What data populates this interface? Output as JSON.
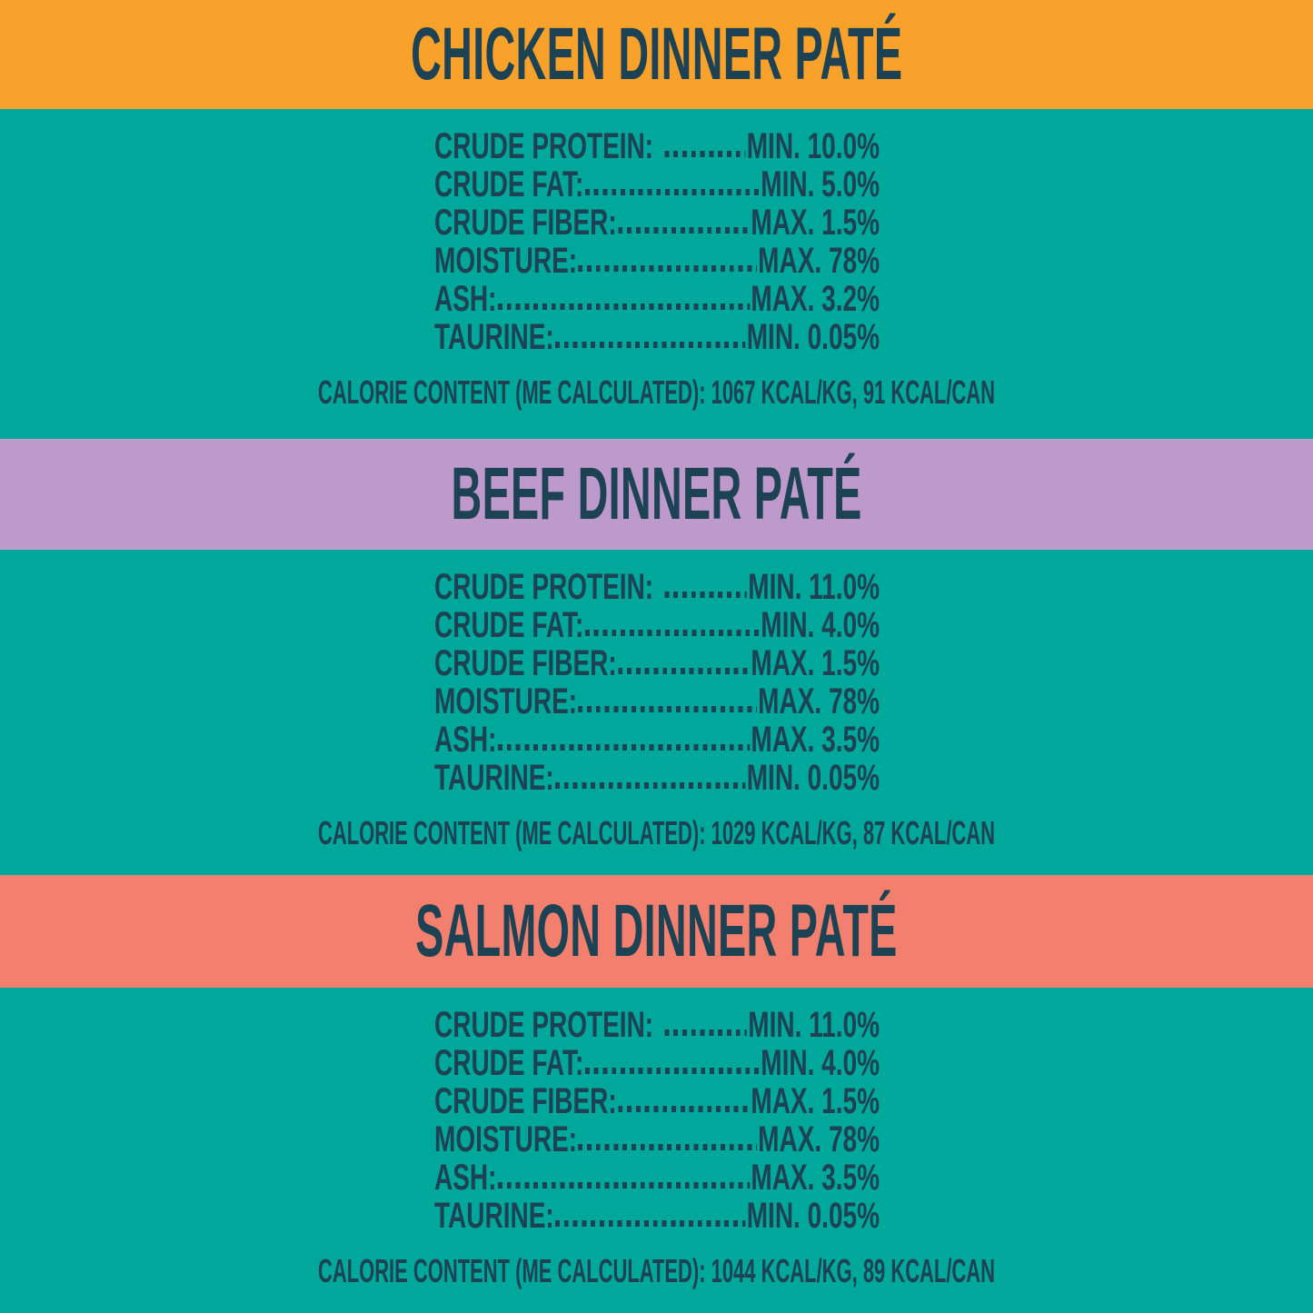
{
  "panel": {
    "background_color": "#00A79B",
    "ink_color": "#1C4253"
  },
  "sections": [
    {
      "id": "chicken",
      "title": "CHICKEN DINNER PATÉ",
      "band_color": "#F9A22B",
      "rows": [
        {
          "label": "CRUDE PROTEIN:",
          "value": "MIN. 10.0%",
          "gap_after_label": true
        },
        {
          "label": "CRUDE FAT:",
          "value": "MIN. 5.0%",
          "gap_after_label": false
        },
        {
          "label": "CRUDE FIBER:",
          "value": "MAX. 1.5%",
          "gap_after_label": false
        },
        {
          "label": "MOISTURE:",
          "value": "MAX. 78%",
          "gap_after_label": false
        },
        {
          "label": "ASH:",
          "value": "MAX. 3.2%",
          "gap_after_label": false
        },
        {
          "label": "TAURINE:",
          "value": "MIN. 0.05%",
          "gap_after_label": false
        }
      ],
      "calorie_line": "CALORIE CONTENT (ME CALCULATED): 1067 KCAL/KG, 91 KCAL/CAN"
    },
    {
      "id": "beef",
      "title": "BEEF DINNER PATÉ",
      "band_color": "#BE99CB",
      "rows": [
        {
          "label": "CRUDE PROTEIN:",
          "value": "MIN. 11.0%",
          "gap_after_label": true
        },
        {
          "label": "CRUDE FAT:",
          "value": "MIN. 4.0%",
          "gap_after_label": false
        },
        {
          "label": "CRUDE FIBER:",
          "value": "MAX. 1.5%",
          "gap_after_label": false
        },
        {
          "label": "MOISTURE:",
          "value": "MAX. 78%",
          "gap_after_label": false
        },
        {
          "label": "ASH:",
          "value": "MAX. 3.5%",
          "gap_after_label": false
        },
        {
          "label": "TAURINE:",
          "value": "MIN. 0.05%",
          "gap_after_label": false
        }
      ],
      "calorie_line": "CALORIE CONTENT (ME CALCULATED): 1029 KCAL/KG, 87 KCAL/CAN"
    },
    {
      "id": "salmon",
      "title": "SALMON DINNER PATÉ",
      "band_color": "#F3806E",
      "rows": [
        {
          "label": "CRUDE PROTEIN:",
          "value": "MIN. 11.0%",
          "gap_after_label": true
        },
        {
          "label": "CRUDE FAT:",
          "value": "MIN. 4.0%",
          "gap_after_label": false
        },
        {
          "label": "CRUDE FIBER:",
          "value": "MAX. 1.5%",
          "gap_after_label": false
        },
        {
          "label": "MOISTURE:",
          "value": "MAX. 78%",
          "gap_after_label": false
        },
        {
          "label": "ASH:",
          "value": "MAX. 3.5%",
          "gap_after_label": false
        },
        {
          "label": "TAURINE:",
          "value": "MIN. 0.05%",
          "gap_after_label": false
        }
      ],
      "calorie_line": "CALORIE CONTENT (ME CALCULATED): 1044 KCAL/KG, 89 KCAL/CAN"
    }
  ]
}
